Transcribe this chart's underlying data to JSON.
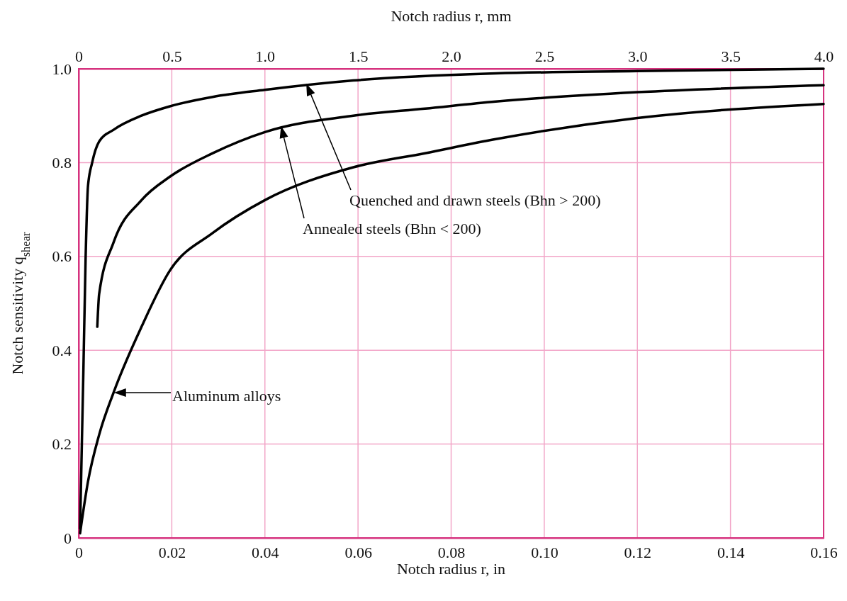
{
  "chart_data": {
    "type": "line",
    "xlabel": "Notch radius r, in",
    "ylabel": "Notch sensitivity q$_{shear}$",
    "x2label": "Notch radius r, mm",
    "xlim": [
      0,
      0.16
    ],
    "xticks": [
      0,
      0.02,
      0.04,
      0.06,
      0.08,
      {
        "value": 0.1,
        "label": "0.10"
      },
      0.12,
      0.14,
      0.16
    ],
    "ylim": [
      0,
      1
    ],
    "yticks": [
      0,
      0.2,
      0.4,
      0.6,
      0.8,
      {
        "value": 1,
        "label": "1.0"
      }
    ],
    "x2lim": [
      0,
      4
    ],
    "x2ticks": [
      0,
      0.5,
      {
        "value": 1,
        "label": "1.0"
      },
      1.5,
      {
        "value": 2,
        "label": "2.0"
      },
      2.5,
      {
        "value": 3,
        "label": "3.0"
      },
      3.5,
      {
        "value": 4,
        "label": "4.0"
      }
    ],
    "grid": true,
    "marker": "none",
    "line_style": "solid",
    "series": [
      {
        "color": "#000000",
        "x": [
          0.0003,
          0.001,
          0.0015,
          0.002,
          0.0029,
          0.0044,
          0.0075,
          0.0135,
          0.0196,
          0.0288,
          0.04,
          0.059,
          0.0896,
          0.12,
          0.16
        ],
        "values": [
          0.02,
          0.35,
          0.6,
          0.75,
          0.8,
          0.845,
          0.87,
          0.9,
          0.92,
          0.94,
          0.955,
          0.975,
          0.99,
          0.995,
          1.0
        ]
      },
      {
        "color": "#000000",
        "x": [
          0.004,
          0.0044,
          0.0075,
          0.0135,
          0.0196,
          0.0288,
          0.04,
          0.059,
          0.0744,
          0.0896,
          0.12,
          0.16
        ],
        "values": [
          0.45,
          0.52,
          0.63,
          0.72,
          0.77,
          0.82,
          0.865,
          0.9,
          0.915,
          0.93,
          0.95,
          0.965
        ]
      },
      {
        "color": "#000000",
        "x": [
          0.0003,
          0.002,
          0.0044,
          0.0075,
          0.0135,
          0.0196,
          0.0288,
          0.04,
          0.059,
          0.0744,
          0.0896,
          0.12,
          0.16
        ],
        "values": [
          0.01,
          0.12,
          0.22,
          0.31,
          0.45,
          0.57,
          0.65,
          0.72,
          0.79,
          0.82,
          0.85,
          0.895,
          0.925
        ]
      }
    ],
    "annotations": [
      "Quenched and drawn steels (Bhn > 200)",
      "Annealed steels (Bhn < 200)",
      "Aluminum alloys"
    ]
  }
}
